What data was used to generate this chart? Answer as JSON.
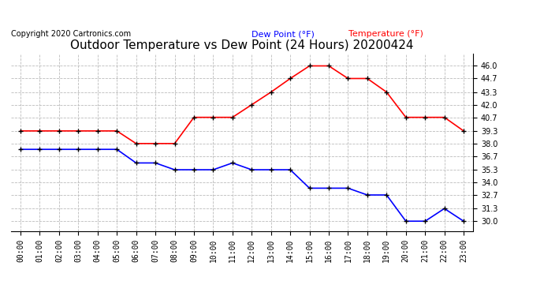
{
  "title": "Outdoor Temperature vs Dew Point (24 Hours) 20200424",
  "copyright": "Copyright 2020 Cartronics.com",
  "legend_dew": "Dew Point (°F)",
  "legend_temp": "Temperature (°F)",
  "hours": [
    0,
    1,
    2,
    3,
    4,
    5,
    6,
    7,
    8,
    9,
    10,
    11,
    12,
    13,
    14,
    15,
    16,
    17,
    18,
    19,
    20,
    21,
    22,
    23
  ],
  "temperature": [
    39.3,
    39.3,
    39.3,
    39.3,
    39.3,
    39.3,
    38.0,
    38.0,
    38.0,
    40.7,
    40.7,
    40.7,
    42.0,
    43.3,
    44.7,
    46.0,
    46.0,
    44.7,
    44.7,
    43.3,
    40.7,
    40.7,
    40.7,
    39.3
  ],
  "dew_point": [
    37.4,
    37.4,
    37.4,
    37.4,
    37.4,
    37.4,
    36.0,
    36.0,
    35.3,
    35.3,
    35.3,
    36.0,
    35.3,
    35.3,
    35.3,
    33.4,
    33.4,
    33.4,
    32.7,
    32.7,
    30.0,
    30.0,
    31.3,
    30.0
  ],
  "ylim_min": 29.0,
  "ylim_max": 47.3,
  "yticks": [
    30.0,
    31.3,
    32.7,
    34.0,
    35.3,
    36.7,
    38.0,
    39.3,
    40.7,
    42.0,
    43.3,
    44.7,
    46.0
  ],
  "temp_color": "red",
  "dew_color": "blue",
  "marker_color": "black",
  "background_color": "#ffffff",
  "grid_color": "#bbbbbb",
  "title_fontsize": 11,
  "tick_fontsize": 7,
  "copyright_fontsize": 7
}
